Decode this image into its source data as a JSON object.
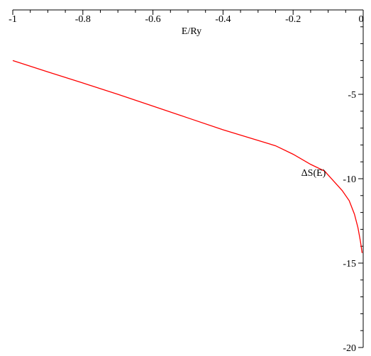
{
  "chart_data": {
    "type": "line",
    "title": "",
    "xlabel": "E/Ry",
    "ylabel": "ΔS(E)",
    "xlim": [
      -1,
      0
    ],
    "ylim": [
      -20,
      0
    ],
    "x_ticks": [
      {
        "value": -1,
        "label": "-1"
      },
      {
        "value": -0.8,
        "label": "-0.8"
      },
      {
        "value": -0.6,
        "label": "-0.6"
      },
      {
        "value": -0.4,
        "label": "-0.4"
      },
      {
        "value": -0.2,
        "label": "-0.2"
      },
      {
        "value": 0,
        "label": "0"
      }
    ],
    "y_ticks": [
      {
        "value": -5,
        "label": "-5"
      },
      {
        "value": -10,
        "label": "-10"
      },
      {
        "value": -15,
        "label": "-15"
      },
      {
        "value": -20,
        "label": "-20"
      }
    ],
    "grid": false,
    "series": [
      {
        "color": "#ff0000",
        "points": [
          {
            "x": -1.0,
            "y": -3.0
          },
          {
            "x": -0.9,
            "y": -3.67
          },
          {
            "x": -0.8,
            "y": -4.33
          },
          {
            "x": -0.7,
            "y": -5.0
          },
          {
            "x": -0.6,
            "y": -5.7
          },
          {
            "x": -0.5,
            "y": -6.4
          },
          {
            "x": -0.4,
            "y": -7.1
          },
          {
            "x": -0.25,
            "y": -8.05
          },
          {
            "x": -0.2,
            "y": -8.55
          },
          {
            "x": -0.15,
            "y": -9.15
          },
          {
            "x": -0.11,
            "y": -9.55
          },
          {
            "x": -0.06,
            "y": -10.7
          },
          {
            "x": -0.04,
            "y": -11.3
          },
          {
            "x": -0.025,
            "y": -12.1
          },
          {
            "x": -0.015,
            "y": -12.9
          },
          {
            "x": -0.008,
            "y": -13.7
          },
          {
            "x": -0.003,
            "y": -14.4
          }
        ]
      }
    ]
  }
}
